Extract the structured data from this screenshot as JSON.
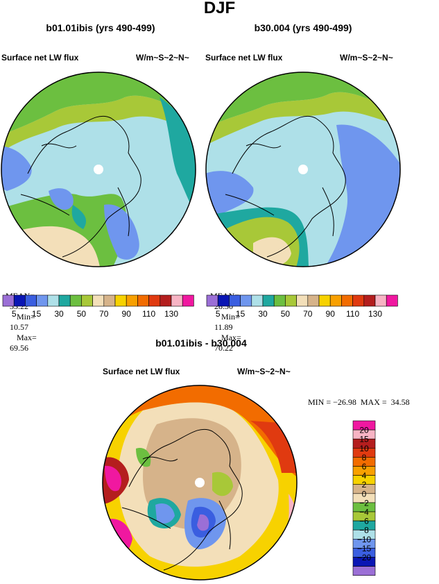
{
  "page_title": "DJF",
  "panels": [
    {
      "case_title": "b01.01ibis (yrs 490-499)",
      "variable": "Surface net LW flux",
      "units": "W/m~S~2~N~",
      "stats": {
        "mean_label": "MEAN=",
        "mean": "33.22",
        "min_label": "Min=",
        "min": "10.57",
        "max_label": "Max=",
        "max": "69.56"
      }
    },
    {
      "case_title": "b30.004 (yrs 490-499)",
      "variable": "Surface net LW flux",
      "units": "W/m~S~2~N~",
      "stats": {
        "mean_label": "MEAN=",
        "mean": "28.30",
        "min_label": "Min=",
        "min": "11.89",
        "max_label": "Max=",
        "max": "70.22"
      }
    }
  ],
  "top_colorbar": {
    "colors": [
      "#9b6fd6",
      "#0a16b4",
      "#3a5ee0",
      "#6f96ee",
      "#aee0e8",
      "#1fa8a0",
      "#6cbf40",
      "#a8c838",
      "#f3dfb9",
      "#d6b38a",
      "#f7d200",
      "#f8a000",
      "#f26c00",
      "#e03a10",
      "#b41e1e",
      "#f7b4c4",
      "#f018a0"
    ],
    "tick_labels": [
      "5",
      "15",
      "30",
      "50",
      "70",
      "90",
      "110",
      "130"
    ]
  },
  "difference": {
    "title": "b01.01ibis - b30.004",
    "variable": "Surface net LW flux",
    "units": "W/m~S~2~N~",
    "stats_text": "MIN = −26.98  MAX =  34.58"
  },
  "diff_colorbar": {
    "colors_top_to_bottom": [
      "#f018a0",
      "#f7b4c4",
      "#b41e1e",
      "#e03a10",
      "#f26c00",
      "#f8a000",
      "#f7d200",
      "#d6b38a",
      "#f3dfb9",
      "#6cbf40",
      "#a8c838",
      "#1fa8a0",
      "#aee0e8",
      "#6f96ee",
      "#3a5ee0",
      "#0a16b4",
      "#9b6fd6"
    ],
    "labels_top_to_bottom": [
      "20",
      "15",
      "10",
      "8",
      "6",
      "4",
      "2",
      "0",
      "−2",
      "−4",
      "−6",
      "−8",
      "−10",
      "−15",
      "−20"
    ]
  }
}
